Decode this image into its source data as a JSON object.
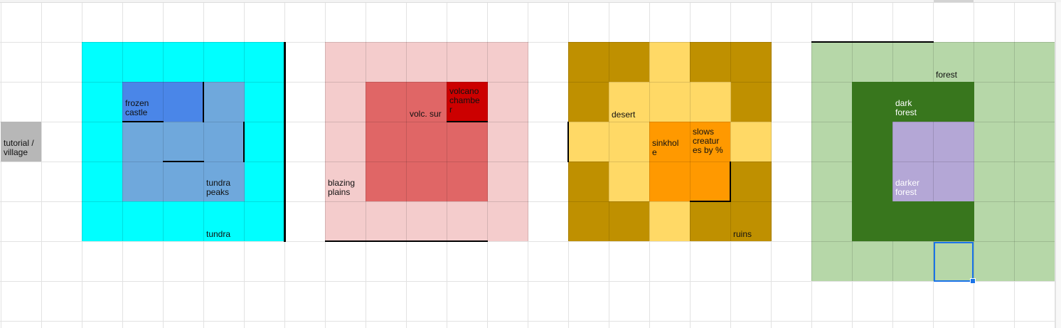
{
  "colors": {
    "tundra": "#00ffff",
    "tundra_peaks": "#6fa8dc",
    "frozen_castle": "#4a86e8",
    "blazing_plains": "#f4cccc",
    "volcanic_surface": "#e06666",
    "volcano_chamber": "#cc0000",
    "ruins": "#bf9000",
    "desert": "#ffd966",
    "sinkhole": "#ff9900",
    "forest": "#b6d7a8",
    "dark_forest": "#38761d",
    "darker_forest": "#b4a7d6",
    "tutorial_village": "#b7b7b7",
    "selection": "#1a73e8"
  },
  "labels": {
    "tutorial_village": "tutorial /\nvillage",
    "frozen_castle": "frozen\ncastle",
    "tundra_peaks": "tundra\npeaks",
    "tundra": "tundra",
    "blazing_plains": "blazing\nplains",
    "volc_surface": "volc. sur",
    "volcano_chamber": "volcano\nchambe\nr",
    "desert": "desert",
    "sinkhole": "sinkhol\ne",
    "slows_creatures": "slows\ncreatur\nes by %",
    "ruins": "ruins",
    "forest": "forest",
    "dark_forest": "dark\nforest",
    "darker_forest": "darker\nforest"
  }
}
